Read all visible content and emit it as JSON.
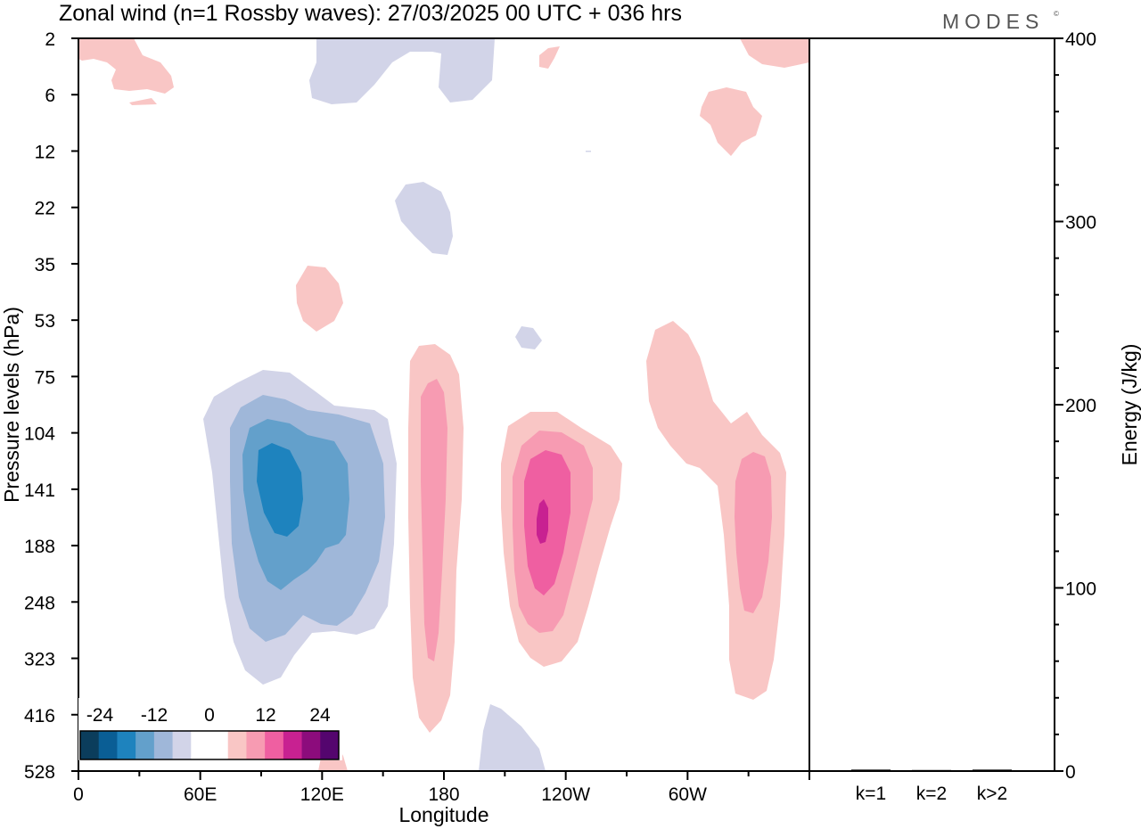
{
  "title": "Zonal wind (n=1 Rossby waves):  27/03/2025  00 UTC  + 036 hrs",
  "brand": "MODES",
  "brand_mark": "©",
  "chart_data": [
    {
      "type": "heatmap",
      "xlabel": "Longitude",
      "ylabel": "Pressure levels (hPa)",
      "x_ticks": [
        "0",
        "60E",
        "120E",
        "180",
        "120W",
        "60W"
      ],
      "y_ticks": [
        "2",
        "6",
        "12",
        "22",
        "35",
        "53",
        "75",
        "104",
        "141",
        "188",
        "248",
        "323",
        "416",
        "528"
      ],
      "colorbar": {
        "labels": [
          "-24",
          "-12",
          "0",
          "12",
          "24"
        ],
        "colors": [
          "#0b3d5c",
          "#0a5e95",
          "#1e83be",
          "#63a0cb",
          "#9fb7d9",
          "#d2d4e8",
          "#ffffff",
          "#ffffff",
          "#f9c6c5",
          "#f79bb2",
          "#ef5fa1",
          "#c82191",
          "#8c0c7c",
          "#54056e"
        ]
      },
      "contours": [
        {
          "sign": "negative",
          "level": 1,
          "lon": 90,
          "level_hpa": 188
        },
        {
          "sign": "negative",
          "level": 2,
          "lon": 95,
          "level_hpa": 160
        },
        {
          "sign": "negative",
          "level": 3,
          "lon": 97,
          "level_hpa": 150
        },
        {
          "sign": "negative",
          "level": 4,
          "lon": 100,
          "level_hpa": 141
        },
        {
          "sign": "positive",
          "level": 1,
          "lon": 178,
          "level_hpa": 188
        },
        {
          "sign": "positive",
          "level": 2,
          "lon": 178,
          "level_hpa": 160
        },
        {
          "sign": "positive",
          "level": 1,
          "lon": 236,
          "level_hpa": 160
        },
        {
          "sign": "positive",
          "level": 2,
          "lon": 236,
          "level_hpa": 160
        },
        {
          "sign": "positive",
          "level": 3,
          "lon": 236,
          "level_hpa": 150
        },
        {
          "sign": "positive",
          "level": 4,
          "lon": 237,
          "level_hpa": 145
        },
        {
          "sign": "positive",
          "level": 1,
          "lon": 330,
          "level_hpa": 160
        },
        {
          "sign": "positive",
          "level": 2,
          "lon": 337,
          "level_hpa": 160
        }
      ]
    },
    {
      "type": "bar",
      "categories": [
        "k=1",
        "k=2",
        "k>2"
      ],
      "values": [
        0.3,
        0.1,
        0.3
      ],
      "ylabel": "Energy (J/kg)",
      "ylim": [
        0,
        400
      ],
      "y_ticks": [
        "0",
        "100",
        "200",
        "300",
        "400"
      ]
    }
  ]
}
